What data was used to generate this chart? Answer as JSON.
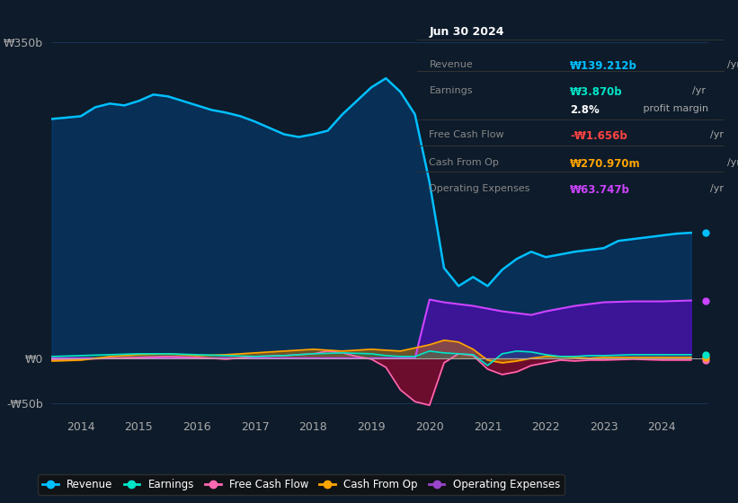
{
  "bg_color": "#0d1b2a",
  "plot_bg_color": "#0d1b2a",
  "grid_color": "#1e3a5f",
  "title_box": {
    "date": "Jun 30 2024",
    "rows": [
      {
        "label": "Revenue",
        "value": "₩139.212b",
        "unit": "/yr",
        "color": "#00bfff"
      },
      {
        "label": "Earnings",
        "value": "₩3.870b",
        "unit": "/yr",
        "color": "#00e5c8"
      },
      {
        "label": "",
        "value": "2.8%",
        "unit": " profit margin",
        "color": "#ffffff"
      },
      {
        "label": "Free Cash Flow",
        "value": "-₩1.656b",
        "unit": "/yr",
        "color": "#ff4444"
      },
      {
        "label": "Cash From Op",
        "value": "₩270.970m",
        "unit": "/yr",
        "color": "#ffa500"
      },
      {
        "label": "Operating Expenses",
        "value": "₩63.747b",
        "unit": "/yr",
        "color": "#cc44ff"
      }
    ]
  },
  "ylim": [
    -60,
    380
  ],
  "yticks": [
    -50,
    0,
    350
  ],
  "ytick_labels": [
    "-₩50b",
    "₩0",
    "₩350b"
  ],
  "xtick_years": [
    2014,
    2015,
    2016,
    2017,
    2018,
    2019,
    2020,
    2021,
    2022,
    2023,
    2024
  ],
  "legend": [
    {
      "label": "Revenue",
      "color": "#00bfff"
    },
    {
      "label": "Earnings",
      "color": "#00e5c8"
    },
    {
      "label": "Free Cash Flow",
      "color": "#ff69b4"
    },
    {
      "label": "Cash From Op",
      "color": "#ffa500"
    },
    {
      "label": "Operating Expenses",
      "color": "#9b44cc"
    }
  ],
  "revenue": {
    "x": [
      2013.5,
      2014.0,
      2014.25,
      2014.5,
      2014.75,
      2015.0,
      2015.25,
      2015.5,
      2015.75,
      2016.0,
      2016.25,
      2016.5,
      2016.75,
      2017.0,
      2017.25,
      2017.5,
      2017.75,
      2018.0,
      2018.25,
      2018.5,
      2018.75,
      2019.0,
      2019.25,
      2019.5,
      2019.75,
      2020.0,
      2020.25,
      2020.5,
      2020.75,
      2021.0,
      2021.25,
      2021.5,
      2021.75,
      2022.0,
      2022.25,
      2022.5,
      2022.75,
      2023.0,
      2023.25,
      2023.5,
      2023.75,
      2024.0,
      2024.25,
      2024.5
    ],
    "y": [
      265,
      268,
      278,
      282,
      280,
      285,
      292,
      290,
      285,
      280,
      275,
      272,
      268,
      262,
      255,
      248,
      245,
      248,
      252,
      270,
      285,
      300,
      310,
      295,
      270,
      195,
      100,
      80,
      90,
      80,
      98,
      110,
      118,
      112,
      115,
      118,
      120,
      122,
      130,
      132,
      134,
      136,
      138,
      139
    ]
  },
  "earnings": {
    "x": [
      2013.5,
      2014.0,
      2014.5,
      2015.0,
      2015.5,
      2016.0,
      2016.5,
      2017.0,
      2017.5,
      2018.0,
      2018.5,
      2019.0,
      2019.25,
      2019.5,
      2019.75,
      2020.0,
      2020.25,
      2020.5,
      2020.75,
      2021.0,
      2021.25,
      2021.5,
      2021.75,
      2022.0,
      2022.25,
      2022.5,
      2022.75,
      2023.0,
      2023.5,
      2024.0,
      2024.5
    ],
    "y": [
      2,
      3,
      4,
      5,
      5,
      4,
      3,
      2,
      3,
      5,
      6,
      5,
      3,
      2,
      2,
      8,
      6,
      5,
      4,
      -8,
      5,
      8,
      7,
      4,
      2,
      2,
      3,
      3,
      4,
      4,
      4
    ]
  },
  "free_cash_flow": {
    "x": [
      2013.5,
      2014.0,
      2014.5,
      2015.0,
      2015.5,
      2016.0,
      2016.5,
      2017.0,
      2017.5,
      2018.0,
      2018.25,
      2018.5,
      2018.75,
      2019.0,
      2019.25,
      2019.5,
      2019.75,
      2020.0,
      2020.25,
      2020.5,
      2020.75,
      2021.0,
      2021.25,
      2021.5,
      2021.75,
      2022.0,
      2022.25,
      2022.5,
      2022.75,
      2023.0,
      2023.5,
      2024.0,
      2024.5
    ],
    "y": [
      -2,
      -1,
      0,
      1,
      2,
      1,
      -1,
      2,
      3,
      5,
      8,
      6,
      2,
      -1,
      -10,
      -35,
      -48,
      -52,
      -5,
      5,
      3,
      -12,
      -18,
      -15,
      -8,
      -5,
      -2,
      -3,
      -2,
      -2,
      -1,
      -2,
      -2
    ]
  },
  "cash_from_op": {
    "x": [
      2013.5,
      2014.0,
      2014.5,
      2015.0,
      2015.5,
      2016.0,
      2016.5,
      2017.0,
      2017.5,
      2018.0,
      2018.5,
      2019.0,
      2019.5,
      2020.0,
      2020.25,
      2020.5,
      2020.75,
      2021.0,
      2021.25,
      2021.5,
      2021.75,
      2022.0,
      2022.25,
      2022.5,
      2022.75,
      2023.0,
      2023.5,
      2024.0,
      2024.5
    ],
    "y": [
      -3,
      -2,
      2,
      4,
      5,
      3,
      4,
      6,
      8,
      10,
      8,
      10,
      8,
      15,
      20,
      18,
      10,
      -2,
      -5,
      -3,
      0,
      2,
      2,
      1,
      0,
      1,
      1,
      1,
      1
    ]
  },
  "op_expenses": {
    "x": [
      2013.5,
      2014.0,
      2014.5,
      2015.0,
      2015.5,
      2016.0,
      2016.5,
      2017.0,
      2017.5,
      2018.0,
      2018.5,
      2019.0,
      2019.25,
      2019.5,
      2019.75,
      2020.0,
      2020.25,
      2020.5,
      2020.75,
      2021.0,
      2021.25,
      2021.5,
      2021.75,
      2022.0,
      2022.25,
      2022.5,
      2022.75,
      2023.0,
      2023.5,
      2024.0,
      2024.5
    ],
    "y": [
      0,
      0,
      0,
      0,
      0,
      0,
      0,
      0,
      0,
      0,
      0,
      0,
      0,
      0,
      0,
      65,
      62,
      60,
      58,
      55,
      52,
      50,
      48,
      52,
      55,
      58,
      60,
      62,
      63,
      63,
      64
    ]
  }
}
